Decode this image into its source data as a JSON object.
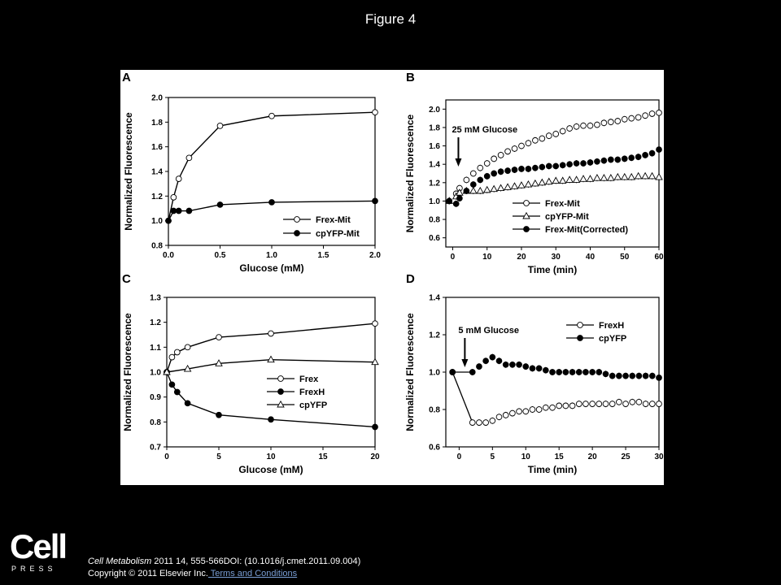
{
  "figure_title": "Figure 4",
  "logo": {
    "word": "Cell",
    "sub": "PRESS"
  },
  "citation": {
    "journal": "Cell Metabolism",
    "details": " 2011 14, 555-566DOI: (10.1016/j.cmet.2011.09.004)",
    "copyright": "Copyright © 2011 Elsevier Inc.",
    "terms_link": " Terms and Conditions"
  },
  "chart_data": [
    {
      "type": "line",
      "panel": "A",
      "xlabel": "Glucose (mM)",
      "ylabel": "Normalized Fluorescence",
      "xlim": [
        0,
        2.0
      ],
      "ylim": [
        0.8,
        2.0
      ],
      "xticks": [
        0.0,
        0.5,
        1.0,
        1.5,
        2.0
      ],
      "xtick_labels": [
        "0.0",
        "0.5",
        "1.0",
        "1.5",
        "2.0"
      ],
      "yticks": [
        0.8,
        1.0,
        1.2,
        1.4,
        1.6,
        1.8,
        2.0
      ],
      "ytick_labels": [
        "0.8",
        "1.0",
        "1.2",
        "1.4",
        "1.6",
        "1.8",
        "2.0"
      ],
      "legend_position": "bottom-right",
      "series": [
        {
          "name": "Frex-Mit",
          "marker": "open-circle",
          "x": [
            0,
            0.05,
            0.1,
            0.2,
            0.5,
            1.0,
            2.0
          ],
          "y": [
            1.0,
            1.19,
            1.34,
            1.51,
            1.77,
            1.85,
            1.88
          ]
        },
        {
          "name": "cpYFP-Mit",
          "marker": "filled-circle",
          "x": [
            0,
            0.05,
            0.1,
            0.2,
            0.5,
            1.0,
            2.0
          ],
          "y": [
            1.0,
            1.08,
            1.08,
            1.08,
            1.13,
            1.15,
            1.16
          ]
        }
      ]
    },
    {
      "type": "scatter",
      "panel": "B",
      "xlabel": "Time (min)",
      "ylabel": "Normalized Fluorescence",
      "xlim": [
        -2,
        60
      ],
      "ylim": [
        0.5,
        2.1
      ],
      "xticks": [
        0,
        10,
        20,
        30,
        40,
        50,
        60
      ],
      "xtick_labels": [
        "0",
        "10",
        "20",
        "30",
        "40",
        "50",
        "60"
      ],
      "yticks": [
        0.6,
        0.8,
        1.0,
        1.2,
        1.4,
        1.6,
        1.8,
        2.0
      ],
      "ytick_labels": [
        "0.6",
        "0.8",
        "1.0",
        "1.2",
        "1.4",
        "1.6",
        "1.8",
        "2.0"
      ],
      "annotation": "25 mM Glucose",
      "annotation_x": 0,
      "legend_position": "bottom-right",
      "series": [
        {
          "name": "Frex-Mit",
          "marker": "open-circle",
          "x": [
            -1,
            1,
            2,
            4,
            6,
            8,
            10,
            12,
            14,
            16,
            18,
            20,
            22,
            24,
            26,
            28,
            30,
            32,
            34,
            36,
            38,
            40,
            42,
            44,
            46,
            48,
            50,
            52,
            54,
            56,
            58,
            60
          ],
          "y": [
            1.0,
            1.08,
            1.14,
            1.23,
            1.3,
            1.36,
            1.41,
            1.46,
            1.5,
            1.54,
            1.57,
            1.6,
            1.63,
            1.66,
            1.68,
            1.71,
            1.73,
            1.76,
            1.79,
            1.81,
            1.82,
            1.82,
            1.83,
            1.85,
            1.86,
            1.87,
            1.89,
            1.9,
            1.91,
            1.93,
            1.95,
            1.96
          ]
        },
        {
          "name": "cpYFP-Mit",
          "marker": "open-triangle",
          "x": [
            -1,
            1,
            2,
            4,
            6,
            8,
            10,
            12,
            14,
            16,
            18,
            20,
            22,
            24,
            26,
            28,
            30,
            32,
            34,
            36,
            38,
            40,
            42,
            44,
            46,
            48,
            50,
            52,
            54,
            56,
            58,
            60
          ],
          "y": [
            1.0,
            1.05,
            1.09,
            1.11,
            1.11,
            1.11,
            1.12,
            1.13,
            1.14,
            1.15,
            1.16,
            1.17,
            1.18,
            1.19,
            1.2,
            1.21,
            1.22,
            1.22,
            1.23,
            1.23,
            1.24,
            1.24,
            1.25,
            1.25,
            1.25,
            1.26,
            1.26,
            1.26,
            1.27,
            1.27,
            1.27,
            1.26
          ]
        },
        {
          "name": "Frex-Mit(Corrected)",
          "marker": "filled-circle",
          "x": [
            -1,
            1,
            2,
            4,
            6,
            8,
            10,
            12,
            14,
            16,
            18,
            20,
            22,
            24,
            26,
            28,
            30,
            32,
            34,
            36,
            38,
            40,
            42,
            44,
            46,
            48,
            50,
            52,
            54,
            56,
            58,
            60
          ],
          "y": [
            1.0,
            0.97,
            1.03,
            1.11,
            1.18,
            1.23,
            1.27,
            1.3,
            1.32,
            1.33,
            1.34,
            1.35,
            1.35,
            1.36,
            1.37,
            1.38,
            1.38,
            1.39,
            1.4,
            1.41,
            1.41,
            1.42,
            1.43,
            1.44,
            1.45,
            1.45,
            1.46,
            1.47,
            1.48,
            1.5,
            1.52,
            1.56
          ]
        }
      ]
    },
    {
      "type": "line",
      "panel": "C",
      "xlabel": "Glucose (mM)",
      "ylabel": "Normalized Fluorescence",
      "xlim": [
        0,
        20
      ],
      "ylim": [
        0.7,
        1.3
      ],
      "xticks": [
        0,
        5,
        10,
        15,
        20
      ],
      "xtick_labels": [
        "0",
        "5",
        "10",
        "15",
        "20"
      ],
      "yticks": [
        0.7,
        0.8,
        0.9,
        1.0,
        1.1,
        1.2,
        1.3
      ],
      "ytick_labels": [
        "0.7",
        "0.8",
        "0.9",
        "1.0",
        "1.1",
        "1.2",
        "1.3"
      ],
      "legend_position": "bottom-right",
      "series": [
        {
          "name": "Frex",
          "marker": "open-circle",
          "x": [
            0,
            0.5,
            1,
            2,
            5,
            10,
            20
          ],
          "y": [
            1.0,
            1.06,
            1.08,
            1.1,
            1.14,
            1.155,
            1.195
          ]
        },
        {
          "name": "FrexH",
          "marker": "filled-circle",
          "x": [
            0,
            0.5,
            1,
            2,
            5,
            10,
            20
          ],
          "y": [
            1.0,
            0.95,
            0.92,
            0.875,
            0.828,
            0.81,
            0.78
          ]
        },
        {
          "name": "cpYFP",
          "marker": "open-triangle",
          "x": [
            0,
            2,
            5,
            10,
            20
          ],
          "y": [
            1.0,
            1.013,
            1.035,
            1.05,
            1.04
          ]
        }
      ]
    },
    {
      "type": "scatter",
      "panel": "D",
      "xlabel": "Time (min)",
      "ylabel": "Normalized Fluorescence",
      "xlim": [
        -2,
        30
      ],
      "ylim": [
        0.6,
        1.4
      ],
      "xticks": [
        0,
        5,
        10,
        15,
        20,
        25,
        30
      ],
      "xtick_labels": [
        "0",
        "5",
        "10",
        "15",
        "20",
        "25",
        "30"
      ],
      "yticks": [
        0.6,
        0.8,
        1.0,
        1.2,
        1.4
      ],
      "ytick_labels": [
        "0.6",
        "0.8",
        "1.0",
        "1.2",
        "1.4"
      ],
      "annotation": "5 mM Glucose",
      "annotation_x": 0,
      "legend_position": "top-right",
      "series": [
        {
          "name": "FrexH",
          "marker": "open-circle",
          "x": [
            -1,
            2,
            3,
            4,
            5,
            6,
            7,
            8,
            9,
            10,
            11,
            12,
            13,
            14,
            15,
            16,
            17,
            18,
            19,
            20,
            21,
            22,
            23,
            24,
            25,
            26,
            27,
            28,
            29,
            30
          ],
          "y": [
            1.0,
            0.73,
            0.73,
            0.73,
            0.74,
            0.76,
            0.77,
            0.78,
            0.79,
            0.79,
            0.8,
            0.8,
            0.81,
            0.81,
            0.82,
            0.82,
            0.82,
            0.83,
            0.83,
            0.83,
            0.83,
            0.83,
            0.83,
            0.84,
            0.83,
            0.84,
            0.84,
            0.83,
            0.83,
            0.83
          ]
        },
        {
          "name": "cpYFP",
          "marker": "filled-circle",
          "x": [
            -1,
            2,
            3,
            4,
            5,
            6,
            7,
            8,
            9,
            10,
            11,
            12,
            13,
            14,
            15,
            16,
            17,
            18,
            19,
            20,
            21,
            22,
            23,
            24,
            25,
            26,
            27,
            28,
            29,
            30
          ],
          "y": [
            1.0,
            1.0,
            1.03,
            1.06,
            1.08,
            1.06,
            1.04,
            1.04,
            1.04,
            1.03,
            1.02,
            1.02,
            1.01,
            1.0,
            1.0,
            1.0,
            1.0,
            1.0,
            1.0,
            1.0,
            1.0,
            0.99,
            0.98,
            0.98,
            0.98,
            0.98,
            0.98,
            0.98,
            0.98,
            0.97
          ]
        }
      ]
    }
  ]
}
